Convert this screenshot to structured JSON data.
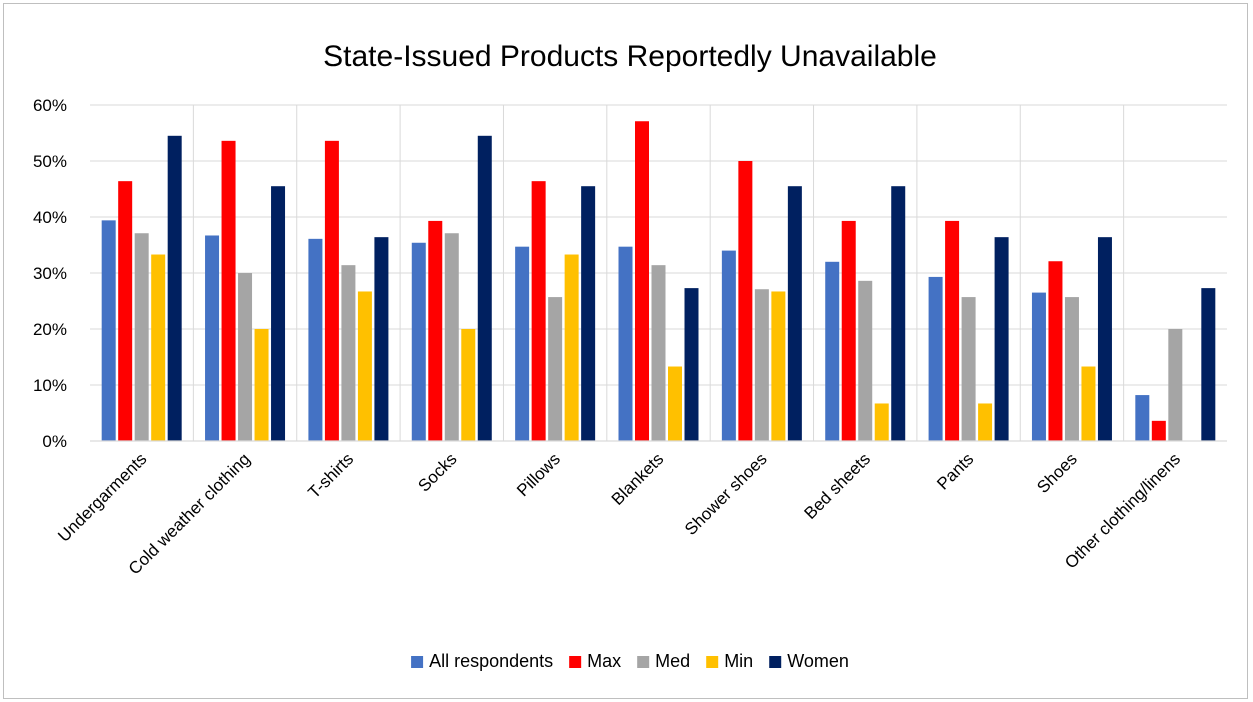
{
  "chart_data": {
    "type": "bar",
    "title": "State-Issued Products Reportedly Unavailable",
    "xlabel": "",
    "ylabel": "",
    "ylim": [
      0,
      0.6
    ],
    "yticks": [
      "0%",
      "10%",
      "20%",
      "30%",
      "40%",
      "50%",
      "60%"
    ],
    "grid": true,
    "legend_position": "bottom",
    "categories": [
      "Undergarments",
      "Cold weather clothing",
      "T-shirts",
      "Socks",
      "Pillows",
      "Blankets",
      "Shower shoes",
      "Bed sheets",
      "Pants",
      "Shoes",
      "Other clothing/linens"
    ],
    "series": [
      {
        "name": "All respondents",
        "color": "#4472c4",
        "values": [
          0.394,
          0.367,
          0.361,
          0.354,
          0.347,
          0.347,
          0.34,
          0.32,
          0.293,
          0.265,
          0.082
        ]
      },
      {
        "name": "Max",
        "color": "#ff0000",
        "values": [
          0.464,
          0.536,
          0.536,
          0.393,
          0.464,
          0.571,
          0.5,
          0.393,
          0.393,
          0.321,
          0.036
        ]
      },
      {
        "name": "Med",
        "color": "#a5a5a5",
        "values": [
          0.371,
          0.3,
          0.314,
          0.371,
          0.257,
          0.314,
          0.271,
          0.286,
          0.257,
          0.257,
          0.2
        ]
      },
      {
        "name": "Min",
        "color": "#ffc000",
        "values": [
          0.333,
          0.2,
          0.267,
          0.2,
          0.333,
          0.133,
          0.267,
          0.067,
          0.067,
          0.133,
          0.0
        ]
      },
      {
        "name": "Women",
        "color": "#002060",
        "values": [
          0.545,
          0.455,
          0.364,
          0.545,
          0.455,
          0.273,
          0.455,
          0.455,
          0.364,
          0.364,
          0.273
        ]
      }
    ]
  }
}
